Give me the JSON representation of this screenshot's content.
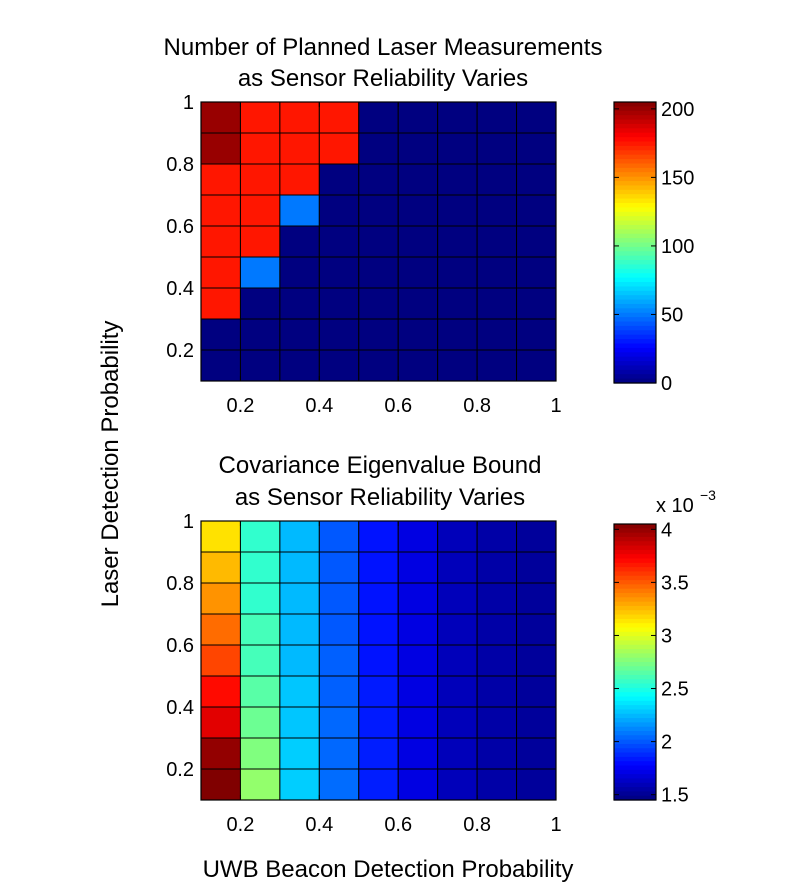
{
  "shared": {
    "ylabel": "Laser Detection Probability",
    "xlabel": "UWB Beacon Detection Probability"
  },
  "chart_data": [
    {
      "type": "heatmap",
      "title": [
        "Number of Planned Laser Measurements",
        "as Sensor Reliability Varies"
      ],
      "x_centers": [
        0.15,
        0.25,
        0.35,
        0.45,
        0.55,
        0.65,
        0.75,
        0.85,
        0.95
      ],
      "y_centers": [
        0.95,
        0.85,
        0.75,
        0.65,
        0.55,
        0.45,
        0.35,
        0.25,
        0.15
      ],
      "x_range": [
        0.1,
        1.0
      ],
      "y_range": [
        0.1,
        1.0
      ],
      "xticks": [
        0.2,
        0.4,
        0.6,
        0.8,
        1
      ],
      "xtick_labels": [
        "0.2",
        "0.4",
        "0.6",
        "0.8",
        "1"
      ],
      "yticks": [
        0.2,
        0.4,
        0.6,
        0.8,
        1
      ],
      "ytick_labels": [
        "0.2",
        "0.4",
        "0.6",
        "0.8",
        "1"
      ],
      "values": [
        [
          200,
          175,
          175,
          175,
          0,
          0,
          0,
          0,
          0
        ],
        [
          200,
          175,
          175,
          175,
          0,
          0,
          0,
          0,
          0
        ],
        [
          175,
          175,
          175,
          0,
          0,
          0,
          0,
          0,
          0
        ],
        [
          175,
          175,
          50,
          0,
          0,
          0,
          0,
          0,
          0
        ],
        [
          175,
          175,
          0,
          0,
          0,
          0,
          0,
          0,
          0
        ],
        [
          175,
          50,
          0,
          0,
          0,
          0,
          0,
          0,
          0
        ],
        [
          175,
          0,
          0,
          0,
          0,
          0,
          0,
          0,
          0
        ],
        [
          0,
          0,
          0,
          0,
          0,
          0,
          0,
          0,
          0
        ],
        [
          0,
          0,
          0,
          0,
          0,
          0,
          0,
          0,
          0
        ]
      ],
      "clim": [
        0,
        205
      ],
      "colormap": "jet",
      "colorbar": {
        "ticks": [
          0,
          50,
          100,
          150,
          200
        ],
        "tick_labels": [
          "0",
          "50",
          "100",
          "150",
          "200"
        ],
        "exponent_label": ""
      }
    },
    {
      "type": "heatmap",
      "title": [
        "Covariance Eigenvalue Bound",
        "as Sensor Reliability Varies"
      ],
      "x_centers": [
        0.15,
        0.25,
        0.35,
        0.45,
        0.55,
        0.65,
        0.75,
        0.85,
        0.95
      ],
      "y_centers": [
        0.95,
        0.85,
        0.75,
        0.65,
        0.55,
        0.45,
        0.35,
        0.25,
        0.15
      ],
      "x_range": [
        0.1,
        1.0
      ],
      "y_range": [
        0.1,
        1.0
      ],
      "xticks": [
        0.2,
        0.4,
        0.6,
        0.8,
        1
      ],
      "xtick_labels": [
        "0.2",
        "0.4",
        "0.6",
        "0.8",
        "1"
      ],
      "yticks": [
        0.2,
        0.4,
        0.6,
        0.8,
        1
      ],
      "ytick_labels": [
        "0.2",
        "0.4",
        "0.6",
        "0.8",
        "1"
      ],
      "values": [
        [
          3.15,
          2.55,
          2.25,
          2.0,
          1.82,
          1.7,
          1.6,
          1.55,
          1.52
        ],
        [
          3.25,
          2.55,
          2.25,
          2.0,
          1.82,
          1.7,
          1.6,
          1.55,
          1.52
        ],
        [
          3.35,
          2.55,
          2.25,
          2.0,
          1.82,
          1.7,
          1.6,
          1.55,
          1.52
        ],
        [
          3.45,
          2.6,
          2.25,
          2.0,
          1.82,
          1.7,
          1.6,
          1.55,
          1.52
        ],
        [
          3.55,
          2.6,
          2.25,
          2.02,
          1.82,
          1.7,
          1.6,
          1.55,
          1.52
        ],
        [
          3.7,
          2.65,
          2.28,
          2.02,
          1.84,
          1.7,
          1.6,
          1.55,
          1.52
        ],
        [
          3.8,
          2.7,
          2.28,
          2.04,
          1.84,
          1.7,
          1.6,
          1.55,
          1.52
        ],
        [
          4.0,
          2.75,
          2.3,
          2.04,
          1.85,
          1.7,
          1.6,
          1.55,
          1.52
        ],
        [
          4.05,
          2.8,
          2.3,
          2.05,
          1.85,
          1.7,
          1.6,
          1.55,
          1.52
        ]
      ],
      "clim": [
        1.45,
        4.05
      ],
      "colormap": "jet",
      "colorbar": {
        "ticks": [
          1.5,
          2,
          2.5,
          3,
          3.5,
          4
        ],
        "tick_labels": [
          "1.5",
          "2",
          "2.5",
          "3",
          "3.5",
          "4"
        ],
        "exponent_label": "x 10",
        "exponent_power": "−3"
      }
    }
  ]
}
